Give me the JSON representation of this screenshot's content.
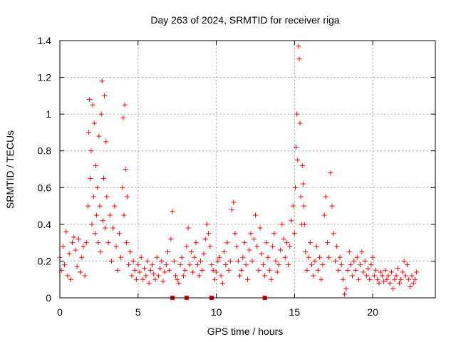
{
  "chart_data": {
    "type": "scatter",
    "title": "Day 263 of 2024, SRMTID for receiver riga",
    "xlabel": "GPS time / hours",
    "ylabel": "SRMTID / TECUs",
    "xlim": [
      0,
      24
    ],
    "ylim": [
      0,
      1.4
    ],
    "xticks": [
      0,
      5,
      10,
      15,
      20
    ],
    "yticks": [
      0,
      0.2,
      0.4,
      0.6,
      0.8,
      1,
      1.2,
      1.4
    ],
    "ytick_labels": [
      "0",
      "0.2",
      "0.4",
      "0.6",
      "0.8",
      "1",
      "1.2",
      "1.4"
    ],
    "grid": true,
    "marker": "+",
    "color": "#ff0000",
    "gap_marker_color": "#dd0000",
    "gap_markers_x": [
      7.2,
      8.1,
      9.7,
      13.1
    ],
    "series": [
      {
        "name": "SRMTID",
        "x": [
          0.0,
          0.1,
          0.2,
          0.3,
          0.4,
          0.5,
          0.6,
          0.7,
          0.8,
          0.9,
          1.0,
          1.1,
          1.2,
          1.3,
          1.4,
          1.5,
          1.6,
          1.7,
          1.8,
          1.85,
          1.9,
          1.95,
          2.0,
          2.05,
          2.1,
          2.15,
          2.2,
          2.25,
          2.3,
          2.35,
          2.4,
          2.45,
          2.5,
          2.55,
          2.6,
          2.65,
          2.7,
          2.75,
          2.8,
          2.85,
          2.9,
          2.95,
          3.0,
          3.1,
          3.2,
          3.3,
          3.4,
          3.5,
          3.6,
          3.7,
          3.8,
          3.9,
          4.0,
          4.05,
          4.1,
          4.15,
          4.2,
          4.25,
          4.3,
          4.4,
          4.5,
          4.6,
          4.7,
          4.8,
          4.9,
          5.0,
          5.1,
          5.2,
          5.3,
          5.4,
          5.5,
          5.6,
          5.7,
          5.8,
          5.9,
          6.0,
          6.1,
          6.2,
          6.3,
          6.4,
          6.5,
          6.6,
          6.7,
          6.8,
          6.9,
          7.0,
          7.1,
          7.2,
          7.3,
          7.4,
          7.5,
          7.6,
          7.7,
          7.8,
          7.9,
          8.0,
          8.1,
          8.2,
          8.3,
          8.4,
          8.5,
          8.6,
          8.7,
          8.8,
          8.9,
          9.0,
          9.1,
          9.2,
          9.3,
          9.4,
          9.5,
          9.6,
          9.7,
          9.8,
          9.9,
          10.0,
          10.1,
          10.2,
          10.3,
          10.4,
          10.5,
          10.6,
          10.7,
          10.8,
          10.9,
          11.0,
          11.1,
          11.2,
          11.3,
          11.4,
          11.5,
          11.6,
          11.7,
          11.8,
          11.9,
          12.0,
          12.1,
          12.2,
          12.3,
          12.4,
          12.5,
          12.6,
          12.7,
          12.8,
          12.9,
          13.0,
          13.1,
          13.2,
          13.3,
          13.4,
          13.5,
          13.6,
          13.7,
          13.8,
          13.9,
          14.0,
          14.1,
          14.2,
          14.3,
          14.4,
          14.5,
          14.6,
          14.7,
          14.8,
          14.9,
          15.0,
          15.05,
          15.1,
          15.15,
          15.2,
          15.25,
          15.3,
          15.35,
          15.4,
          15.45,
          15.5,
          15.55,
          15.6,
          15.65,
          15.7,
          15.8,
          15.9,
          16.0,
          16.1,
          16.2,
          16.3,
          16.4,
          16.5,
          16.6,
          16.7,
          16.8,
          16.9,
          17.0,
          17.1,
          17.2,
          17.3,
          17.4,
          17.5,
          17.6,
          17.7,
          17.8,
          17.9,
          18.0,
          18.1,
          18.2,
          18.3,
          18.4,
          18.5,
          18.6,
          18.7,
          18.8,
          18.9,
          19.0,
          19.1,
          19.2,
          19.3,
          19.4,
          19.5,
          19.6,
          19.7,
          19.8,
          19.9,
          20.0,
          20.1,
          20.2,
          20.3,
          20.4,
          20.5,
          20.6,
          20.7,
          20.8,
          20.9,
          21.0,
          21.1,
          21.2,
          21.3,
          21.4,
          21.5,
          21.6,
          21.7,
          21.8,
          21.9,
          22.0,
          22.1,
          22.2,
          22.3,
          22.4,
          22.5,
          22.6,
          22.7,
          22.8
        ],
        "y": [
          0.22,
          0.15,
          0.28,
          0.18,
          0.36,
          0.12,
          0.24,
          0.1,
          0.3,
          0.33,
          0.26,
          0.17,
          0.32,
          0.14,
          0.22,
          0.28,
          0.12,
          0.3,
          0.5,
          0.9,
          1.08,
          0.65,
          0.8,
          0.4,
          1.05,
          0.55,
          0.95,
          0.35,
          0.72,
          0.45,
          0.6,
          0.3,
          0.88,
          0.5,
          0.25,
          1.0,
          1.18,
          0.42,
          0.65,
          1.1,
          0.38,
          0.85,
          0.55,
          0.3,
          0.45,
          0.2,
          0.38,
          0.5,
          0.28,
          0.15,
          0.35,
          0.22,
          0.6,
          0.98,
          0.45,
          1.05,
          0.7,
          0.3,
          0.55,
          0.18,
          0.25,
          0.12,
          0.2,
          0.15,
          0.1,
          0.18,
          0.14,
          0.22,
          0.1,
          0.16,
          0.12,
          0.2,
          0.08,
          0.15,
          0.18,
          0.13,
          0.1,
          0.22,
          0.12,
          0.16,
          0.2,
          0.09,
          0.14,
          0.18,
          0.25,
          0.15,
          0.32,
          0.47,
          0.2,
          0.12,
          0.1,
          0.08,
          0.18,
          0.22,
          0.12,
          0.15,
          0.28,
          0.38,
          0.18,
          0.25,
          0.14,
          0.22,
          0.3,
          0.18,
          0.12,
          0.2,
          0.15,
          0.24,
          0.32,
          0.4,
          0.35,
          0.28,
          0.18,
          0.15,
          0.1,
          0.14,
          0.2,
          0.22,
          0.12,
          0.08,
          0.25,
          0.18,
          0.3,
          0.15,
          0.2,
          0.48,
          0.52,
          0.35,
          0.28,
          0.2,
          0.12,
          0.15,
          0.22,
          0.3,
          0.18,
          0.1,
          0.26,
          0.35,
          0.2,
          0.32,
          0.45,
          0.28,
          0.15,
          0.38,
          0.24,
          0.18,
          0.12,
          0.3,
          0.22,
          0.15,
          0.1,
          0.28,
          0.35,
          0.2,
          0.14,
          0.18,
          0.26,
          0.4,
          0.32,
          0.22,
          0.3,
          0.18,
          0.28,
          0.42,
          0.5,
          0.35,
          0.6,
          0.82,
          1.0,
          0.75,
          1.37,
          1.3,
          0.95,
          0.55,
          0.4,
          0.72,
          0.62,
          0.5,
          0.4,
          0.25,
          0.15,
          0.22,
          0.3,
          0.18,
          0.12,
          0.2,
          0.28,
          0.15,
          0.22,
          0.1,
          0.18,
          0.45,
          0.55,
          0.3,
          0.22,
          0.68,
          0.5,
          0.35,
          0.2,
          0.28,
          0.15,
          0.22,
          0.18,
          0.1,
          0.02,
          0.05,
          0.15,
          0.25,
          0.18,
          0.12,
          0.2,
          0.15,
          0.22,
          0.1,
          0.18,
          0.25,
          0.14,
          0.2,
          0.12,
          0.16,
          0.1,
          0.18,
          0.22,
          0.12,
          0.15,
          0.1,
          0.08,
          0.14,
          0.12,
          0.09,
          0.15,
          0.1,
          0.12,
          0.08,
          0.14,
          0.05,
          0.1,
          0.12,
          0.16,
          0.08,
          0.1,
          0.14,
          0.2,
          0.12,
          0.18,
          0.1,
          0.06,
          0.12,
          0.08,
          0.1,
          0.14
        ]
      }
    ]
  }
}
